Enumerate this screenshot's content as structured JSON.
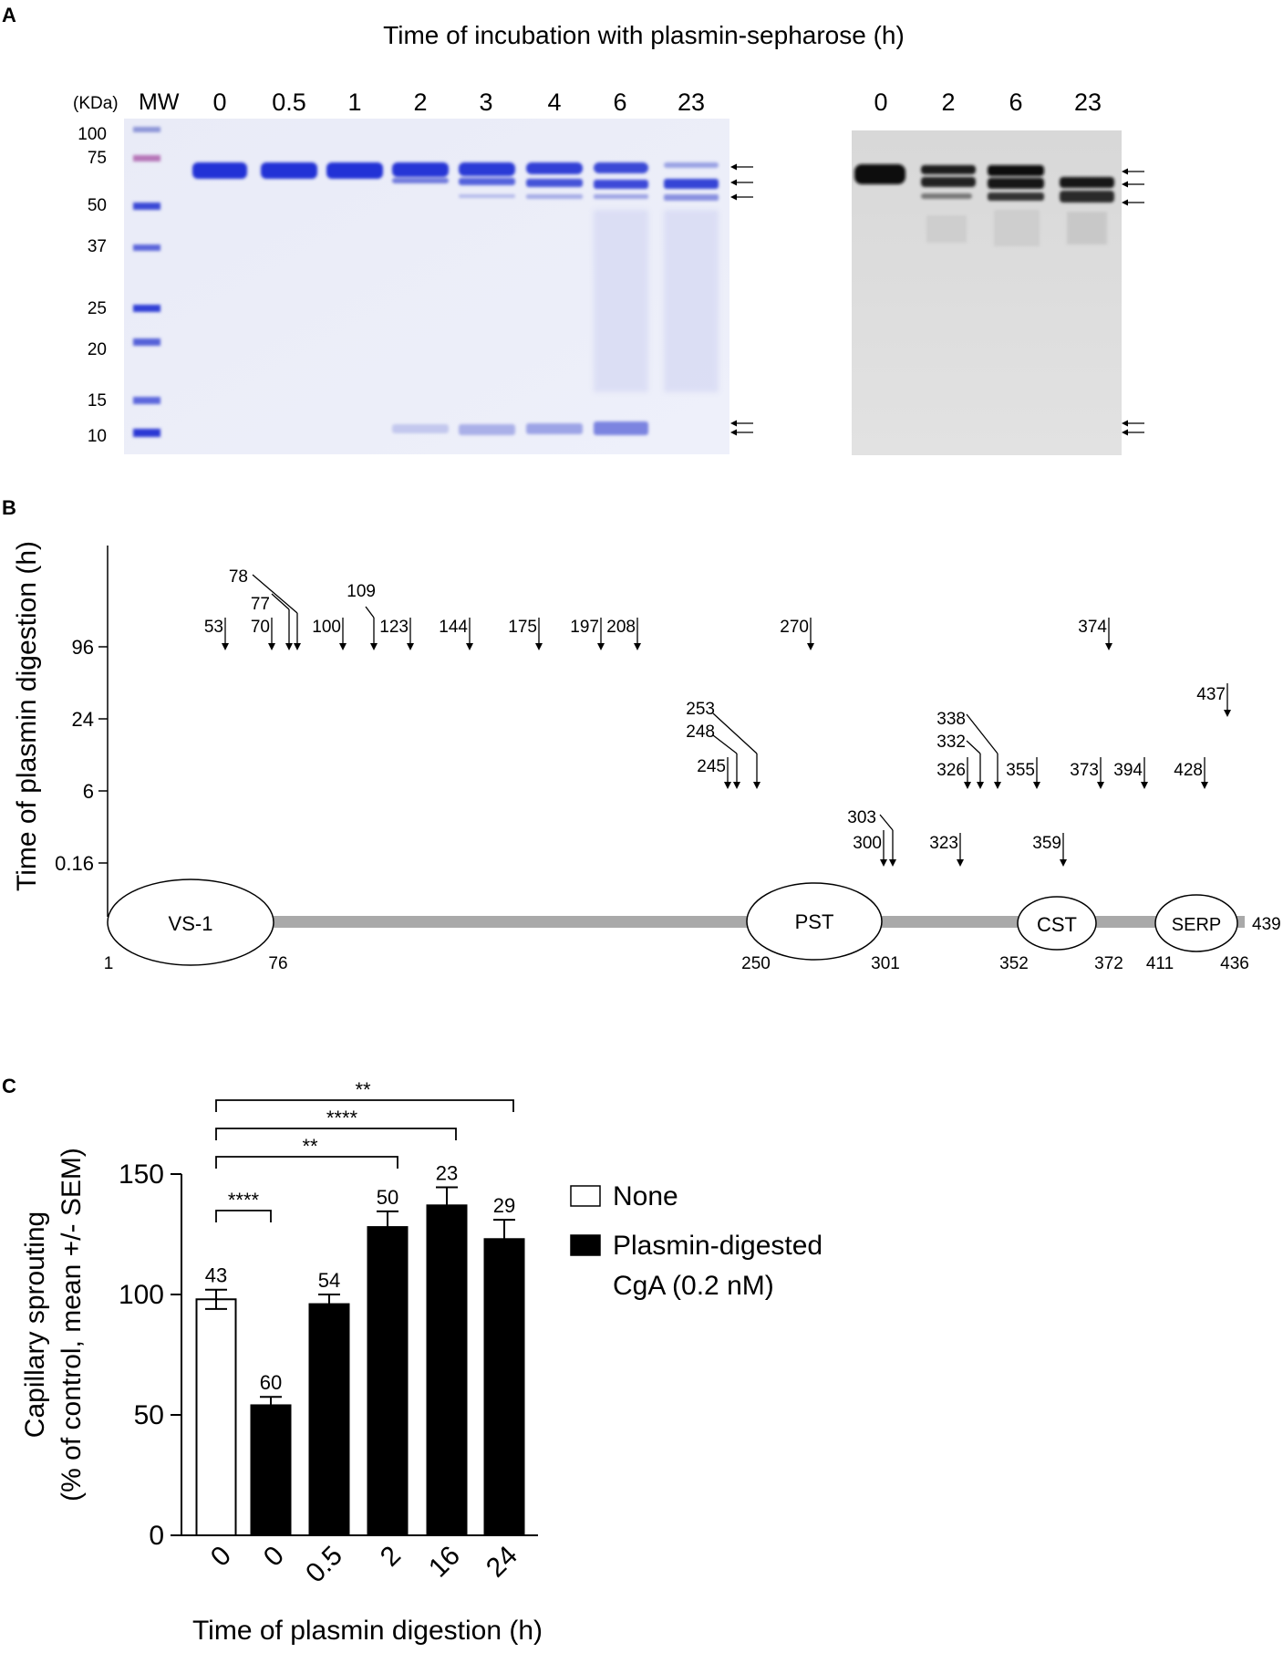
{
  "panel_a": {
    "letter": "A",
    "title": "Time of incubation with plasmin-sepharose (h)",
    "kda_label": "(KDa)",
    "mw_label": "MW",
    "mw_markers": [
      "100",
      "75",
      "50",
      "37",
      "25",
      "20",
      "15",
      "10"
    ],
    "gel_lanes": [
      "0",
      "0.5",
      "1",
      "2",
      "3",
      "4",
      "6",
      "23"
    ],
    "blot_lanes": [
      "0",
      "2",
      "6",
      "23"
    ]
  },
  "panel_b": {
    "letter": "B",
    "ylabel": "Time of plasmin digestion (h)",
    "yticks": [
      "96",
      "24",
      "6",
      "0.16"
    ],
    "cleavage_sites": {
      "t96": [
        "53",
        "70",
        "77",
        "78",
        "100",
        "109",
        "123",
        "144",
        "175",
        "197",
        "208",
        "270",
        "374"
      ],
      "t24": [
        "437"
      ],
      "t6": [
        "245",
        "248",
        "253",
        "326",
        "332",
        "338",
        "355",
        "373",
        "394",
        "428"
      ],
      "t016": [
        "300",
        "303",
        "323",
        "359"
      ]
    },
    "domains": [
      {
        "name": "VS-1",
        "start": "1",
        "end": "76"
      },
      {
        "name": "PST",
        "start": "250",
        "end": "301"
      },
      {
        "name": "CST",
        "start": "352",
        "end": "372"
      },
      {
        "name": "SERP",
        "start": "411",
        "end": "436"
      }
    ],
    "length": "439"
  },
  "panel_c": {
    "letter": "C",
    "legend": [
      {
        "label": "None",
        "color": "#ffffff"
      },
      {
        "label": "Plasmin-digested",
        "label2": "CgA (0.2 nM)",
        "color": "#000000"
      }
    ],
    "significance": [
      "****",
      "**",
      "****",
      "**"
    ]
  },
  "chart_data": {
    "type": "bar",
    "categories": [
      "0",
      "0",
      "0.5",
      "2",
      "16",
      "24"
    ],
    "values": [
      98,
      54,
      96,
      128,
      137,
      123
    ],
    "errors": [
      4,
      3.5,
      4,
      6.5,
      7.5,
      8
    ],
    "n_labels": [
      "43",
      "60",
      "54",
      "50",
      "23",
      "29"
    ],
    "bar_colors": [
      "#ffffff",
      "#000000",
      "#000000",
      "#000000",
      "#000000",
      "#000000"
    ],
    "xlabel": "Time of plasmin digestion (h)",
    "ylabel": "Capillary sprouting",
    "ylabel2": "(% of control, mean +/- SEM)",
    "ylim": [
      0,
      150
    ],
    "yticks": [
      "0",
      "50",
      "100",
      "150"
    ]
  }
}
